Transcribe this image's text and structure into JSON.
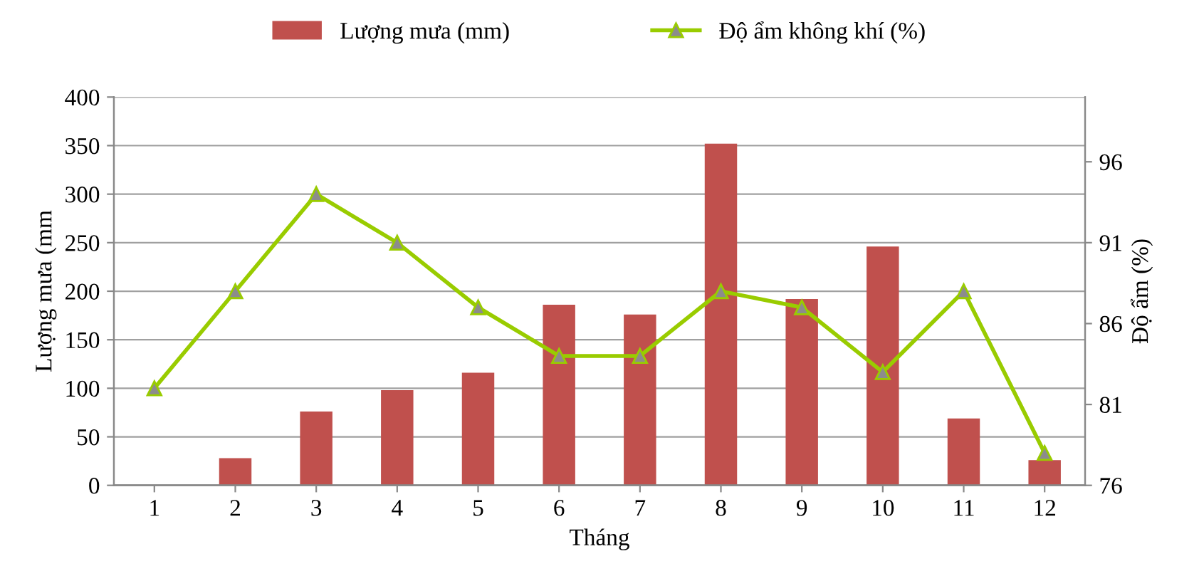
{
  "chart_data": {
    "type": "bar",
    "xlabel": "Tháng",
    "ylabel": "Lượng mưa (mm",
    "y2label": "Độ ẩm (%)",
    "categories": [
      "1",
      "2",
      "3",
      "4",
      "5",
      "6",
      "7",
      "8",
      "9",
      "10",
      "11",
      "12"
    ],
    "series": [
      {
        "name": "Lượng mưa (mm)",
        "color": "#c0504d",
        "values": [
          0,
          28,
          76,
          98,
          116,
          186,
          176,
          352,
          192,
          246,
          69,
          26
        ]
      },
      {
        "name": "Độ ẩm không khí (%)",
        "type": "line",
        "axis": "y2",
        "color": "#99cc00",
        "marker": "triangle",
        "values": [
          82,
          88,
          94,
          91,
          87,
          84,
          84,
          88,
          87,
          83,
          88,
          78
        ]
      }
    ],
    "ylim": [
      0,
      400
    ],
    "yticks": [
      0,
      50,
      100,
      150,
      200,
      250,
      300,
      350,
      400
    ],
    "y2lim": [
      76,
      100
    ],
    "y2ticks": [
      76,
      81,
      86,
      91,
      96
    ],
    "grid": "y",
    "legend": "top"
  }
}
